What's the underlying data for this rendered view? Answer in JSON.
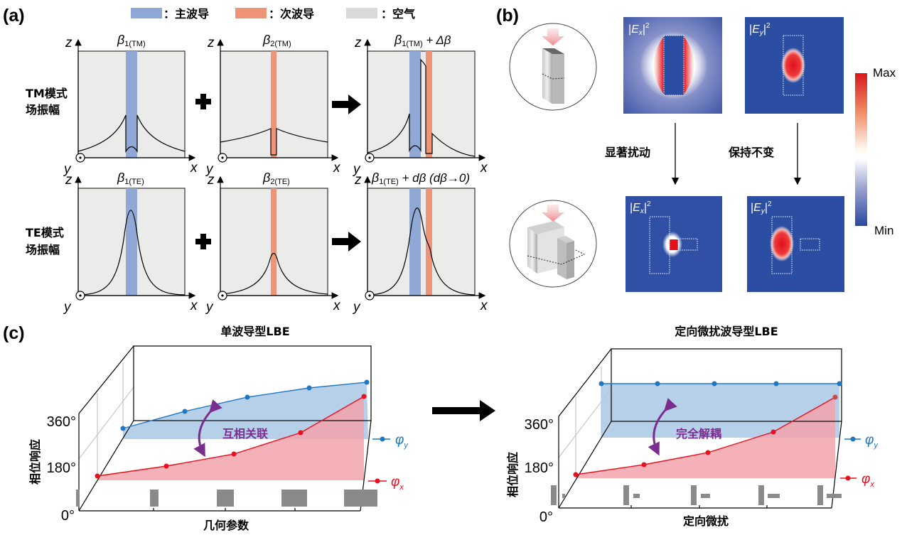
{
  "panel_labels": {
    "a": "(a)",
    "b": "(b)",
    "c": "(c)"
  },
  "legend": [
    {
      "label": "：主波导",
      "color": "#8fa8d6"
    },
    {
      "label": "：次波导",
      "color": "#ee9478"
    },
    {
      "label": "：空气",
      "color": "#d9d9d9"
    }
  ],
  "a": {
    "axis": {
      "z": "z",
      "x": "x",
      "y": "y"
    },
    "rows": [
      {
        "line1": "TM模式",
        "line2": "场振幅",
        "titles": [
          {
            "beta": "β",
            "sub": "1(TM)",
            "suffix": ""
          },
          {
            "beta": "β",
            "sub": "2(TM)",
            "suffix": ""
          },
          {
            "beta": "β",
            "sub": "1(TM)",
            "suffix": " + Δβ"
          }
        ]
      },
      {
        "line1": "TE模式",
        "line2": "场振幅",
        "titles": [
          {
            "beta": "β",
            "sub": "1(TE)",
            "suffix": ""
          },
          {
            "beta": "β",
            "sub": "2(TE)",
            "suffix": ""
          },
          {
            "beta": "β",
            "sub": "1(TE)",
            "suffix": " + dβ (dβ→0)"
          }
        ]
      }
    ],
    "plus_symbol": "+",
    "air_color": "#ebebea"
  },
  "b": {
    "maps": [
      {
        "E": "E",
        "comp": "x",
        "sup": "2",
        "bar": "|"
      },
      {
        "E": "E",
        "comp": "y",
        "sup": "2",
        "bar": "|"
      },
      {
        "E": "E",
        "comp": "x",
        "sup": "2",
        "bar": "|"
      },
      {
        "E": "E",
        "comp": "y",
        "sup": "2",
        "bar": "|"
      }
    ],
    "transition_left": "显著扰动",
    "transition_right": "保持不变",
    "colorbar": {
      "max": "Max",
      "min": "Min",
      "max_color": "#d7191c",
      "min_color": "#2649a0"
    }
  },
  "c": {
    "left": {
      "title": "单波导型LBE",
      "xlabel": "几何参数",
      "ylabel": "相位响应",
      "ticks": [
        "360°",
        "180°",
        "0°"
      ],
      "annotation": "互相关联",
      "legend": [
        {
          "label": "φ",
          "sub": "y",
          "color": "#1f77c4"
        },
        {
          "label": "φ",
          "sub": "x",
          "color": "#e8101e"
        }
      ]
    },
    "right": {
      "title": "定向微扰波导型LBE",
      "xlabel": "定向微扰",
      "ylabel": "相位响应",
      "ticks": [
        "360°",
        "180°",
        "0°"
      ],
      "annotation": "完全解耦",
      "legend": [
        {
          "label": "φ",
          "sub": "y",
          "color": "#1f77c4"
        },
        {
          "label": "φ",
          "sub": "x",
          "color": "#e8101e"
        }
      ]
    },
    "annotation_color": "#7b2d8e"
  }
}
